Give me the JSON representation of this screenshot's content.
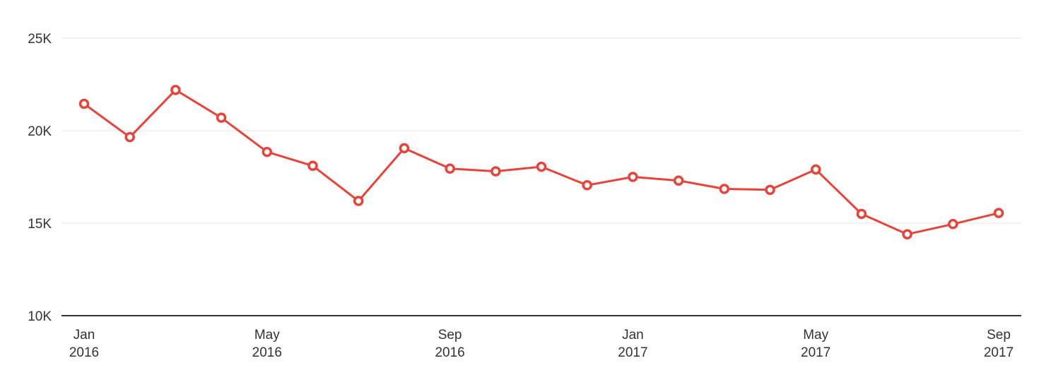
{
  "colors": {
    "series": "#e8433a",
    "grid": "#e6e6e6",
    "axis": "#333333",
    "text": "#333333"
  },
  "chart_data": {
    "type": "line",
    "title": "",
    "xlabel": "",
    "ylabel": "",
    "x": [
      "2016-01",
      "2016-02",
      "2016-03",
      "2016-04",
      "2016-05",
      "2016-06",
      "2016-07",
      "2016-08",
      "2016-09",
      "2016-10",
      "2016-11",
      "2016-12",
      "2017-01",
      "2017-02",
      "2017-03",
      "2017-04",
      "2017-05",
      "2017-06",
      "2017-07",
      "2017-08",
      "2017-09"
    ],
    "series": [
      {
        "values": [
          21450,
          19650,
          22200,
          20700,
          18850,
          18100,
          16200,
          19050,
          17950,
          17800,
          18050,
          17050,
          17500,
          17300,
          16850,
          16800,
          17900,
          15500,
          14400,
          14950,
          15550
        ]
      }
    ],
    "ylim": [
      10000,
      25000
    ],
    "y_ticks": [
      {
        "value": 10000,
        "label": "10K"
      },
      {
        "value": 15000,
        "label": "15K"
      },
      {
        "value": 20000,
        "label": "20K"
      },
      {
        "value": 25000,
        "label": "25K"
      }
    ],
    "x_ticks": [
      {
        "x": "2016-01",
        "month": "Jan",
        "year": "2016"
      },
      {
        "x": "2016-05",
        "month": "May",
        "year": "2016"
      },
      {
        "x": "2016-09",
        "month": "Sep",
        "year": "2016"
      },
      {
        "x": "2017-01",
        "month": "Jan",
        "year": "2017"
      },
      {
        "x": "2017-05",
        "month": "May",
        "year": "2017"
      },
      {
        "x": "2017-09",
        "month": "Sep",
        "year": "2017"
      }
    ],
    "grid": true,
    "legend": "none"
  }
}
